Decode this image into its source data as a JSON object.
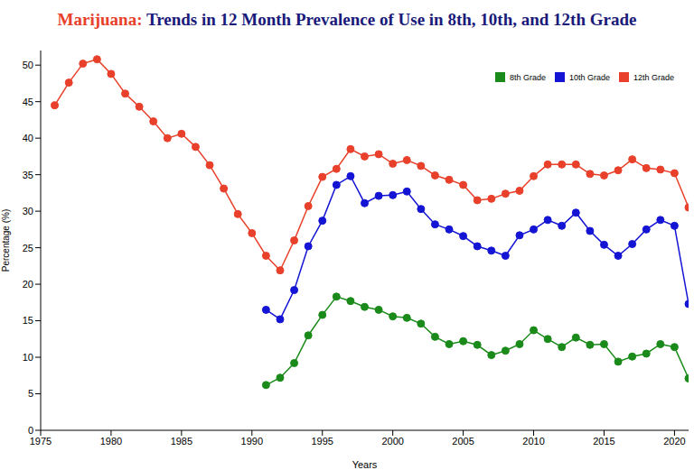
{
  "chart_data": {
    "type": "line",
    "title": "Marijuana: Trends in 12 Month Prevalence of Use in 8th, 10th, and 12th Grade",
    "x_label": "Years",
    "y_label": "Percentage (%)",
    "x": [
      1976,
      1977,
      1978,
      1979,
      1980,
      1981,
      1982,
      1983,
      1984,
      1985,
      1986,
      1987,
      1988,
      1989,
      1990,
      1991,
      1992,
      1993,
      1994,
      1995,
      1996,
      1997,
      1998,
      1999,
      2000,
      2001,
      2002,
      2003,
      2004,
      2005,
      2006,
      2007,
      2008,
      2009,
      2010,
      2011,
      2012,
      2013,
      2014,
      2015,
      2016,
      2017,
      2018,
      2019,
      2020,
      2021
    ],
    "series": [
      {
        "name": "8th Grade",
        "color": "#1a8a1a",
        "marker": "circle",
        "values": [
          null,
          null,
          null,
          null,
          null,
          null,
          null,
          null,
          null,
          null,
          null,
          null,
          null,
          null,
          null,
          6.2,
          7.2,
          9.2,
          13.0,
          15.8,
          18.3,
          17.7,
          16.9,
          16.5,
          15.6,
          15.4,
          14.6,
          12.8,
          11.8,
          12.2,
          11.7,
          10.3,
          10.9,
          11.8,
          13.7,
          12.5,
          11.4,
          12.7,
          11.7,
          11.8,
          9.4,
          10.1,
          10.5,
          11.8,
          11.4,
          7.1
        ]
      },
      {
        "name": "10th Grade",
        "color": "#1414d4",
        "marker": "circle",
        "values": [
          null,
          null,
          null,
          null,
          null,
          null,
          null,
          null,
          null,
          null,
          null,
          null,
          null,
          null,
          null,
          16.5,
          15.2,
          19.2,
          25.2,
          28.7,
          33.6,
          34.8,
          31.1,
          32.1,
          32.2,
          32.7,
          30.3,
          28.2,
          27.5,
          26.6,
          25.2,
          24.6,
          23.9,
          26.7,
          27.5,
          28.8,
          28.0,
          29.8,
          27.3,
          25.4,
          23.9,
          25.5,
          27.5,
          28.8,
          28.0,
          17.3
        ]
      },
      {
        "name": "12th Grade",
        "color": "#e8402a",
        "marker": "circle",
        "values": [
          44.5,
          47.6,
          50.2,
          50.8,
          48.8,
          46.1,
          44.3,
          42.3,
          40.0,
          40.6,
          38.8,
          36.3,
          33.1,
          29.6,
          27.0,
          23.9,
          21.9,
          26.0,
          30.7,
          34.7,
          35.8,
          38.5,
          37.5,
          37.8,
          36.5,
          37.0,
          36.2,
          34.9,
          34.3,
          33.6,
          31.5,
          31.7,
          32.4,
          32.8,
          34.8,
          36.4,
          36.4,
          36.4,
          35.1,
          34.9,
          35.6,
          37.1,
          35.9,
          35.7,
          35.2,
          30.5
        ]
      }
    ],
    "xlim": [
      1975,
      2021
    ],
    "xticks": [
      1975,
      1980,
      1985,
      1990,
      1995,
      2000,
      2005,
      2010,
      2015,
      2020
    ],
    "ylim": [
      0,
      52
    ],
    "yticks": [
      0,
      5,
      10,
      15,
      20,
      25,
      30,
      35,
      40,
      45,
      50
    ],
    "grid": false,
    "legend": "upper right"
  }
}
